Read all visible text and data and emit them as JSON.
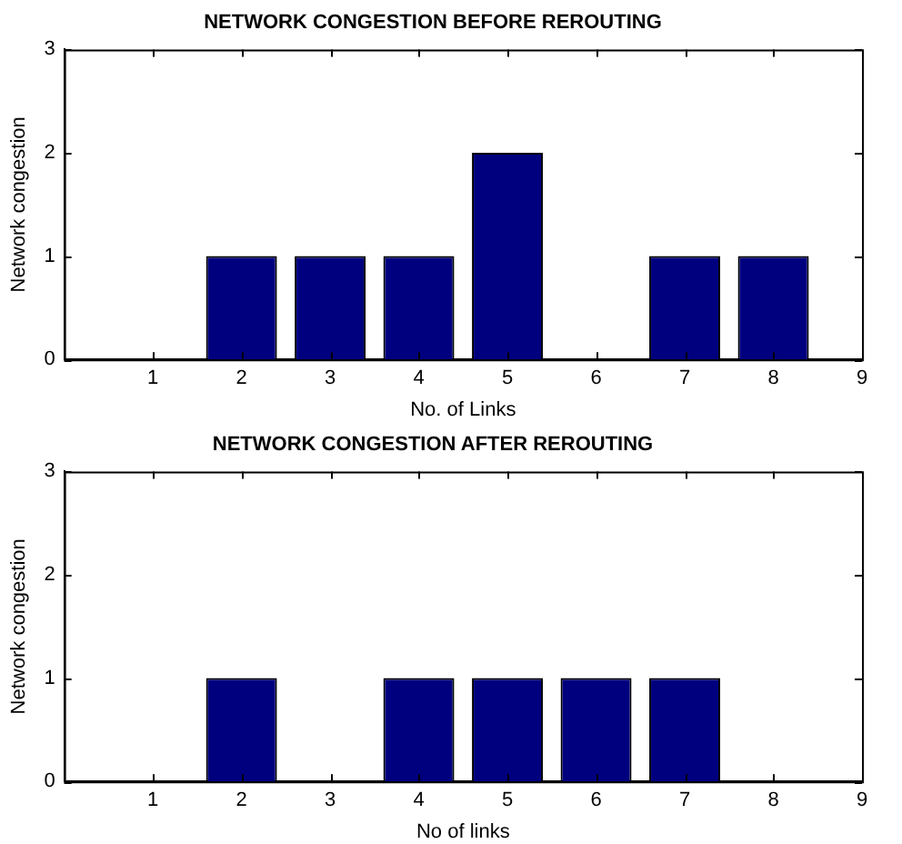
{
  "chart_data": [
    {
      "type": "bar",
      "title": "NETWORK CONGESTION BEFORE REROUTING",
      "xlabel": "No. of Links",
      "ylabel": "Network congestion",
      "x": [
        1,
        2,
        3,
        4,
        5,
        6,
        7,
        8
      ],
      "values": [
        0,
        1,
        1,
        1,
        2,
        0,
        1,
        1
      ],
      "color": "#00007f",
      "xlim": [
        0,
        9
      ],
      "xticks": [
        {
          "value": 0,
          "label": null
        },
        1,
        2,
        3,
        4,
        5,
        6,
        7,
        8,
        9
      ],
      "ylim": [
        0,
        3
      ],
      "yticks": [
        0,
        1,
        2,
        3
      ],
      "grid": false,
      "legend": false
    },
    {
      "type": "bar",
      "title": "NETWORK CONGESTION AFTER REROUTING",
      "xlabel": "No of links",
      "ylabel": "Network congestion",
      "x": [
        1,
        2,
        3,
        4,
        5,
        6,
        7,
        8
      ],
      "values": [
        0,
        1,
        0,
        1,
        1,
        1,
        1,
        0
      ],
      "color": "#00007f",
      "xlim": [
        0,
        9
      ],
      "xticks": [
        {
          "value": 0,
          "label": null
        },
        1,
        2,
        3,
        4,
        5,
        6,
        7,
        8,
        9
      ],
      "ylim": [
        0,
        3
      ],
      "yticks": [
        0,
        1,
        2,
        3
      ],
      "grid": false,
      "legend": false
    }
  ]
}
